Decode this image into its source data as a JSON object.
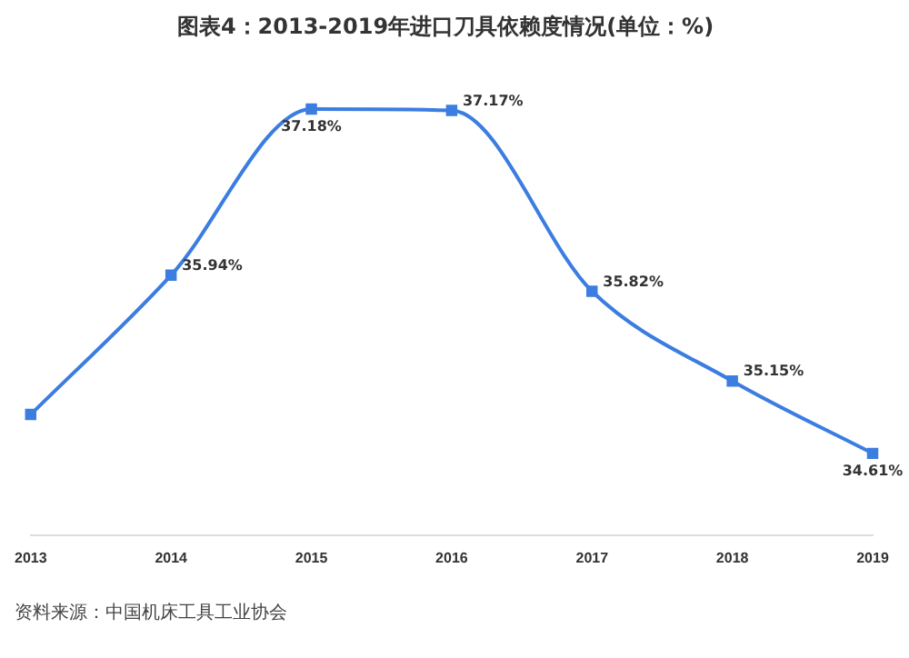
{
  "chart_data": {
    "type": "line",
    "title": "图表4：2013-2019年进口刀具依赖度情况(单位：%)",
    "categories": [
      "2013",
      "2014",
      "2015",
      "2016",
      "2017",
      "2018",
      "2019"
    ],
    "series": [
      {
        "color": "#3b7de0",
        "values": [
          34.9,
          35.94,
          37.18,
          37.17,
          35.82,
          35.15,
          34.61
        ],
        "value_labels": [
          null,
          "35.94%",
          "37.18%",
          "37.17%",
          "35.82%",
          "35.15%",
          "34.61%"
        ]
      }
    ],
    "marker": "square",
    "grid": false,
    "legend": false,
    "annotations": [
      "资料来源：中国机床工具工业协会"
    ]
  }
}
